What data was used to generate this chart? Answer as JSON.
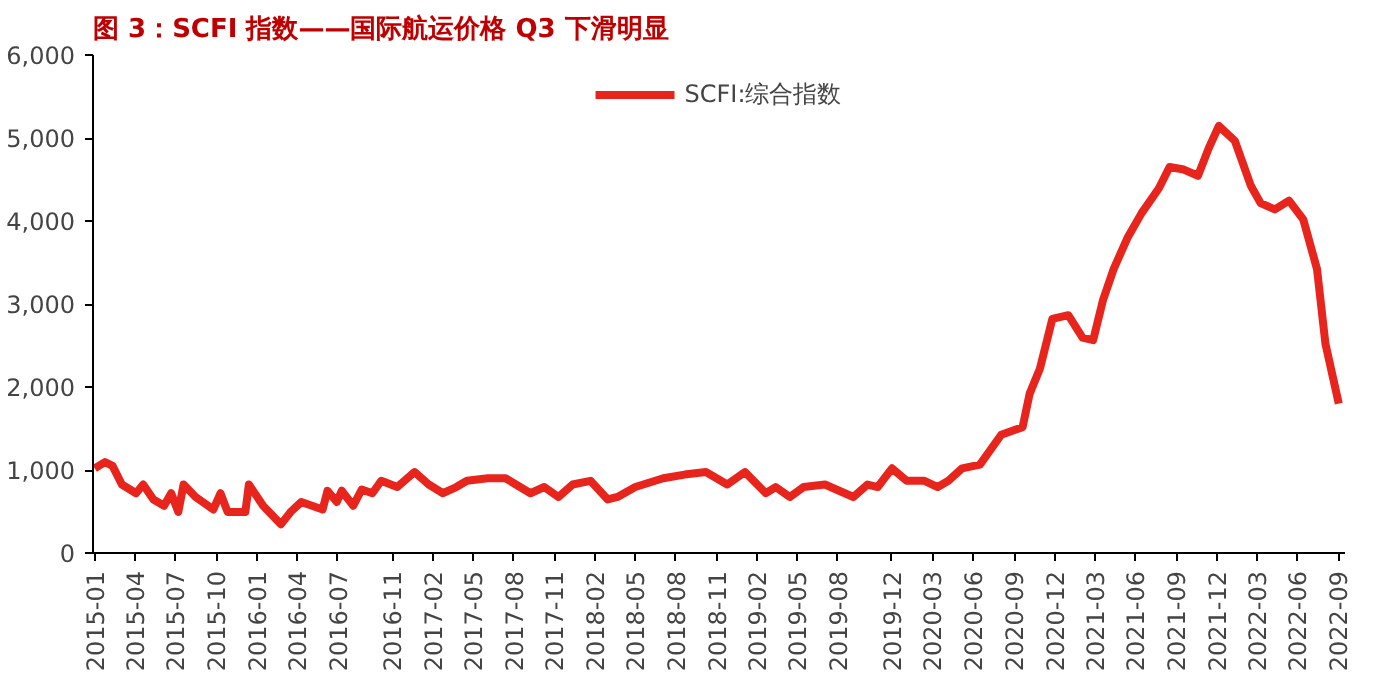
{
  "chart_data": {
    "type": "line",
    "title": "图 3：SCFI 指数——国际航运价格 Q3 下滑明显",
    "x": [
      "2015-01-01",
      "2015-01-24",
      "2015-02-10",
      "2015-03-03",
      "2015-04-04",
      "2015-04-20",
      "2015-05-13",
      "2015-06-06",
      "2015-06-22",
      "2015-07-08",
      "2015-07-20",
      "2015-08-16",
      "2015-09-25",
      "2015-10-11",
      "2015-10-27",
      "2015-12-06",
      "2015-12-14",
      "2016-01-15",
      "2016-02-24",
      "2016-03-17",
      "2016-04-10",
      "2016-05-28",
      "2016-06-08",
      "2016-06-29",
      "2016-07-10",
      "2016-08-05",
      "2016-08-24",
      "2016-09-17",
      "2016-10-07",
      "2016-11-12",
      "2016-12-21",
      "2017-01-22",
      "2017-02-23",
      "2017-03-25",
      "2017-04-18",
      "2017-06-04",
      "2017-07-14",
      "2017-09-08",
      "2017-10-09",
      "2017-11-10",
      "2017-12-12",
      "2018-01-21",
      "2018-03-01",
      "2018-03-23",
      "2018-05-02",
      "2018-07-04",
      "2018-08-21",
      "2018-10-08",
      "2018-11-25",
      "2019-01-04",
      "2019-02-20",
      "2019-03-14",
      "2019-04-15",
      "2019-05-16",
      "2019-07-03",
      "2019-09-05",
      "2019-10-07",
      "2019-10-30",
      "2019-12-01",
      "2020-01-03",
      "2020-02-12",
      "2020-03-13",
      "2020-04-06",
      "2020-05-07",
      "2020-06-16",
      "2020-08-03",
      "2020-09-20",
      "2020-10-06",
      "2020-10-29",
      "2020-11-26",
      "2021-01-01",
      "2021-02-02",
      "2021-02-26",
      "2021-03-20",
      "2021-04-13",
      "2021-05-14",
      "2021-06-15",
      "2021-07-24",
      "2021-08-17",
      "2021-09-18",
      "2021-10-20",
      "2021-11-13",
      "2021-12-06",
      "2022-01-11",
      "2022-02-16",
      "2022-03-10",
      "2022-04-11",
      "2022-05-13",
      "2022-06-14",
      "2022-07-15",
      "2022-08-03",
      "2022-09-02"
    ],
    "series": [
      {
        "name": "SCFI:综合指数",
        "color": "#e8251d",
        "values": [
          1020,
          1095,
          1050,
          825,
          720,
          825,
          645,
          570,
          720,
          495,
          825,
          675,
          525,
          720,
          495,
          495,
          825,
          570,
          345,
          495,
          615,
          525,
          750,
          615,
          750,
          570,
          765,
          720,
          870,
          795,
          975,
          825,
          720,
          795,
          870,
          900,
          900,
          720,
          795,
          675,
          825,
          870,
          645,
          675,
          795,
          900,
          945,
          975,
          825,
          975,
          720,
          795,
          675,
          795,
          825,
          675,
          825,
          795,
          1020,
          870,
          870,
          795,
          870,
          1020,
          1065,
          1425,
          1515,
          1920,
          2220,
          2820,
          2865,
          2595,
          2565,
          3045,
          3420,
          3795,
          4095,
          4395,
          4650,
          4620,
          4545,
          4875,
          5145,
          4965,
          4425,
          4215,
          4140,
          4245,
          4020,
          3420,
          2520,
          1800
        ]
      }
    ],
    "xlim": [
      "2014-12-28",
      "2022-09-16"
    ],
    "xticks": [
      "2015-01",
      "2015-04",
      "2015-07",
      "2015-10",
      "2016-01",
      "2016-04",
      "2016-07",
      "2016-11",
      "2017-02",
      "2017-05",
      "2017-08",
      "2017-11",
      "2018-02",
      "2018-05",
      "2018-08",
      "2018-11",
      "2019-02",
      "2019-05",
      "2019-08",
      "2019-12",
      "2020-03",
      "2020-06",
      "2020-09",
      "2020-12",
      "2021-03",
      "2021-06",
      "2021-09",
      "2021-12",
      "2022-03",
      "2022-06",
      "2022-09"
    ],
    "ylim": [
      0,
      6000
    ],
    "yticks": [
      0,
      {
        "value": 1000,
        "label": "1,000"
      },
      {
        "value": 2000,
        "label": "2,000"
      },
      {
        "value": 3000,
        "label": "3,000"
      },
      {
        "value": 4000,
        "label": "4,000"
      },
      {
        "value": 5000,
        "label": "5,000"
      },
      {
        "value": 6000,
        "label": "6,000"
      }
    ],
    "grid": false,
    "legend": "top",
    "marker": "none",
    "line_style": "solid"
  }
}
